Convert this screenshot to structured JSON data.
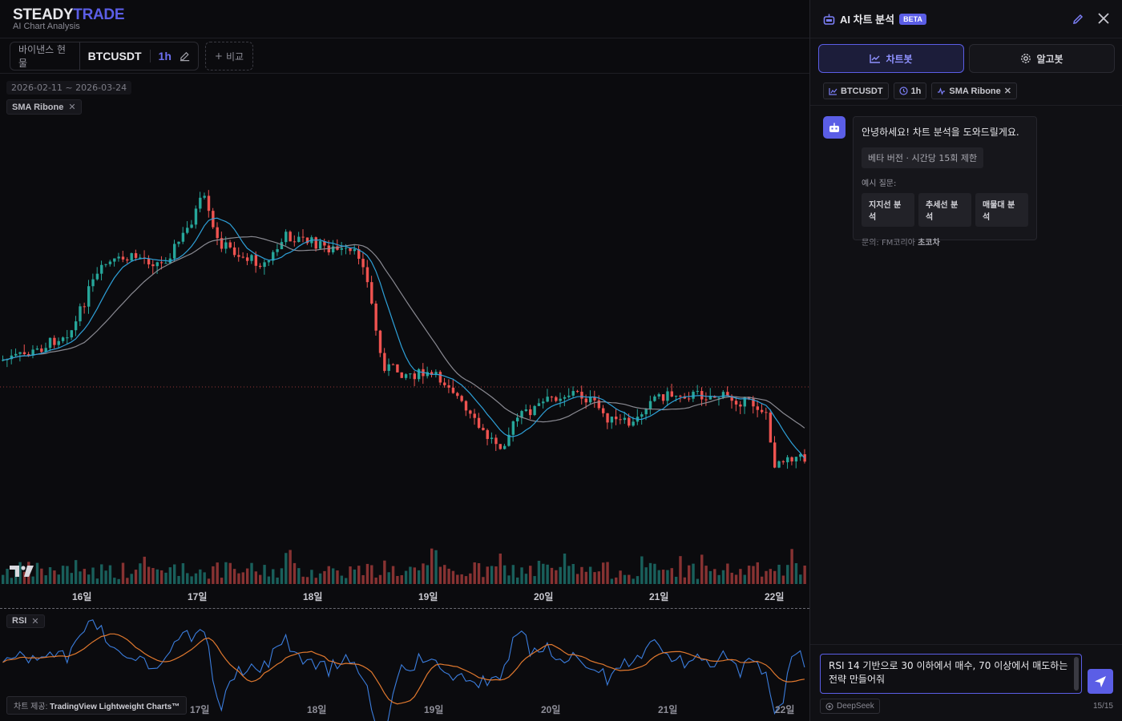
{
  "brand": {
    "name_main": "STEADY",
    "name_accent": "TRADE",
    "subtitle": "AI Chart Analysis"
  },
  "toolbar": {
    "exchange": "바이낸스 현물",
    "symbol": "BTCUSDT",
    "interval": "1h",
    "compare_label": "비교"
  },
  "chart": {
    "date_range": "2026-02-11 ~ 2026-03-24",
    "indicator_tag": "SMA Ribone",
    "rsi_tag": "RSI",
    "credit_prefix": "차트 제공: ",
    "credit_name": "TradingView Lightweight Charts™",
    "colors": {
      "up": "#26a69a",
      "down": "#ef5350",
      "sma_fast": "#2ea0d8",
      "sma_slow": "#8a8a92",
      "rsi": "#3b7ddd",
      "rsi_ma": "#e0782e"
    }
  },
  "chart_data": {
    "type": "line",
    "x_ticks": [
      "16일",
      "17일",
      "18일",
      "19일",
      "20일",
      "21일",
      "22일"
    ],
    "rsi_x_ticks": [
      "17일",
      "18일",
      "19일",
      "20일",
      "21일",
      "22일"
    ],
    "series": [
      {
        "name": "BTCUSDT",
        "kind": "candlestick"
      },
      {
        "name": "SMA Ribone",
        "kind": "line"
      },
      {
        "name": "RSI",
        "kind": "line"
      }
    ]
  },
  "panel": {
    "title": "AI 차트 분석",
    "badge": "BETA",
    "tabs": [
      {
        "label": "차트봇",
        "active": true
      },
      {
        "label": "알고봇",
        "active": false
      }
    ],
    "chips": [
      {
        "label": "BTCUSDT"
      },
      {
        "label": "1h"
      },
      {
        "label": "SMA Ribone"
      }
    ],
    "message": {
      "greeting": "안녕하세요! 차트 분석을 도와드릴게요.",
      "limit": "베타 버전 · 시간당 15회 제한",
      "examples_label": "예시 질문:",
      "examples": [
        "지지선 분석",
        "추세선 분석",
        "매물대 분석"
      ],
      "contact_prefix": "문의: FM코리아 ",
      "contact_name": "초코차"
    },
    "input": {
      "value": "RSI 14 기반으로 30 이하에서 매수, 70 이상에서 매도하는 전략 만들어줘",
      "model": "DeepSeek",
      "count": "15/15"
    }
  }
}
